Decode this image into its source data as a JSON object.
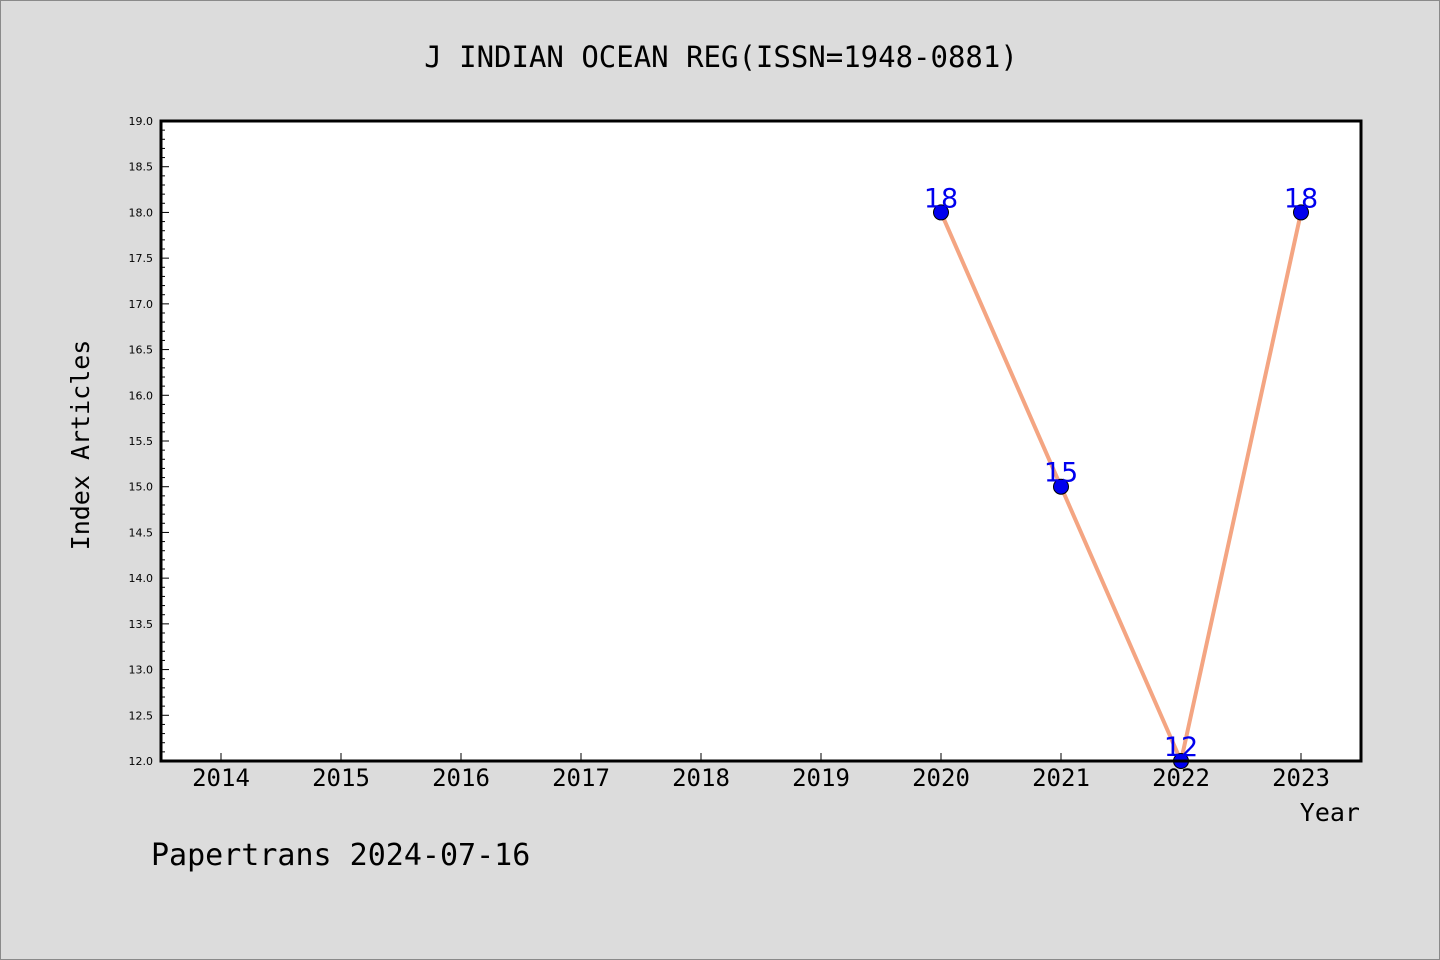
{
  "chart_data": {
    "type": "line",
    "title": "J INDIAN OCEAN REG(ISSN=1948-0881)",
    "xlabel": "Year",
    "ylabel": "Index Articles",
    "x_ticks": [
      "2014",
      "2015",
      "2016",
      "2017",
      "2018",
      "2019",
      "2020",
      "2021",
      "2022",
      "2023"
    ],
    "y_ticks": [
      "12.0",
      "12.5",
      "13.0",
      "13.5",
      "14.0",
      "14.5",
      "15.0",
      "15.5",
      "16.0",
      "16.5",
      "17.0",
      "17.5",
      "18.0",
      "18.5",
      "19.0"
    ],
    "xlim": [
      2013.5,
      2023.5
    ],
    "ylim": [
      12.0,
      19.0
    ],
    "grid": false,
    "series": [
      {
        "x": [
          2020,
          2021,
          2022,
          2023
        ],
        "values": [
          18,
          15,
          12,
          18
        ],
        "labels": [
          "18",
          "15",
          "12",
          "18"
        ]
      }
    ],
    "line_color": "#f4a582",
    "marker_color": "#0000ee",
    "label_color": "#0000ee",
    "footer": "Papertrans 2024-07-16"
  }
}
